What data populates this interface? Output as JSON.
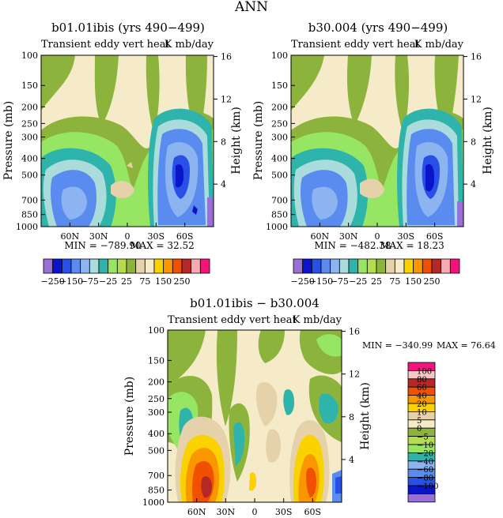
{
  "page_title": "ANN",
  "chart_data": [
    {
      "type": "heatmap",
      "title": "b01.01ibis (yrs 490−499)",
      "subtitle_left": "Transient eddy vert heat",
      "subtitle_right": "K mb/day",
      "ylabel": "Pressure (mb)",
      "y2label": "Height (km)",
      "xticks": [
        "60N",
        "30N",
        "0",
        "30S",
        "60S"
      ],
      "yticks": [
        "100",
        "150",
        "200",
        "250",
        "300",
        "400",
        "500",
        "700",
        "850",
        "1000"
      ],
      "y2ticks": [
        "16",
        "12",
        "8",
        "4"
      ],
      "min_label": "MIN = −789.90",
      "max_label": "MAX =   32.52",
      "colorbar_labels": [
        "−250",
        "−150",
        "−75",
        "−25",
        "25",
        "75",
        "150",
        "250"
      ],
      "colorbar_colors": [
        "#9a6fd6",
        "#0a14c8",
        "#2850e6",
        "#5a8cf0",
        "#8cb4f0",
        "#aadcdc",
        "#2eb4aa",
        "#96e664",
        "#b4dc50",
        "#8cb43c",
        "#e6d2aa",
        "#f5ebc8",
        "#fad200",
        "#fa9600",
        "#f05000",
        "#b42828",
        "#f5aab4",
        "#f0147d"
      ],
      "series_note": ""
    },
    {
      "type": "heatmap",
      "title": "b30.004 (yrs 490−499)",
      "subtitle_left": "Transient eddy vert heat",
      "subtitle_right": "K mb/day",
      "ylabel": "Pressure (mb)",
      "y2label": "Height (km)",
      "xticks": [
        "60N",
        "30N",
        "0",
        "30S",
        "60S"
      ],
      "yticks": [
        "100",
        "150",
        "200",
        "250",
        "300",
        "400",
        "500",
        "700",
        "850",
        "1000"
      ],
      "y2ticks": [
        "16",
        "12",
        "8",
        "4"
      ],
      "min_label": "MIN = −482.38",
      "max_label": "MAX =   18.23",
      "colorbar_labels": [
        "−250",
        "−150",
        "−75",
        "−25",
        "25",
        "75",
        "150",
        "250"
      ]
    },
    {
      "type": "heatmap",
      "title": "b01.01ibis − b30.004",
      "subtitle_left": "Transient eddy vert heat",
      "subtitle_right": "K mb/day",
      "ylabel": "Pressure (mb)",
      "y2label": "Height (km)",
      "xticks": [
        "60N",
        "30N",
        "0",
        "30S",
        "60S"
      ],
      "yticks": [
        "100",
        "150",
        "200",
        "250",
        "300",
        "400",
        "500",
        "700",
        "850",
        "1000"
      ],
      "y2ticks": [
        "16",
        "12",
        "8",
        "4"
      ],
      "min_label": "MIN = −340.99",
      "max_label": "MAX =   76.64",
      "colorbar_labels": [
        "100",
        "80",
        "60",
        "40",
        "20",
        "10",
        "5",
        "0",
        "−5",
        "−10",
        "−20",
        "−40",
        "−60",
        "−80",
        "−100"
      ],
      "colorbar_colors": [
        "#f0147d",
        "#f5c8c8",
        "#b42828",
        "#f05000",
        "#fa9600",
        "#fad200",
        "#e6d2aa",
        "#f5ebc8",
        "#8cb43c",
        "#b4dc50",
        "#96e664",
        "#2eb4aa",
        "#8cb4f0",
        "#5a8cf0",
        "#2850e6",
        "#0a14c8",
        "#9a6fd6"
      ]
    }
  ]
}
